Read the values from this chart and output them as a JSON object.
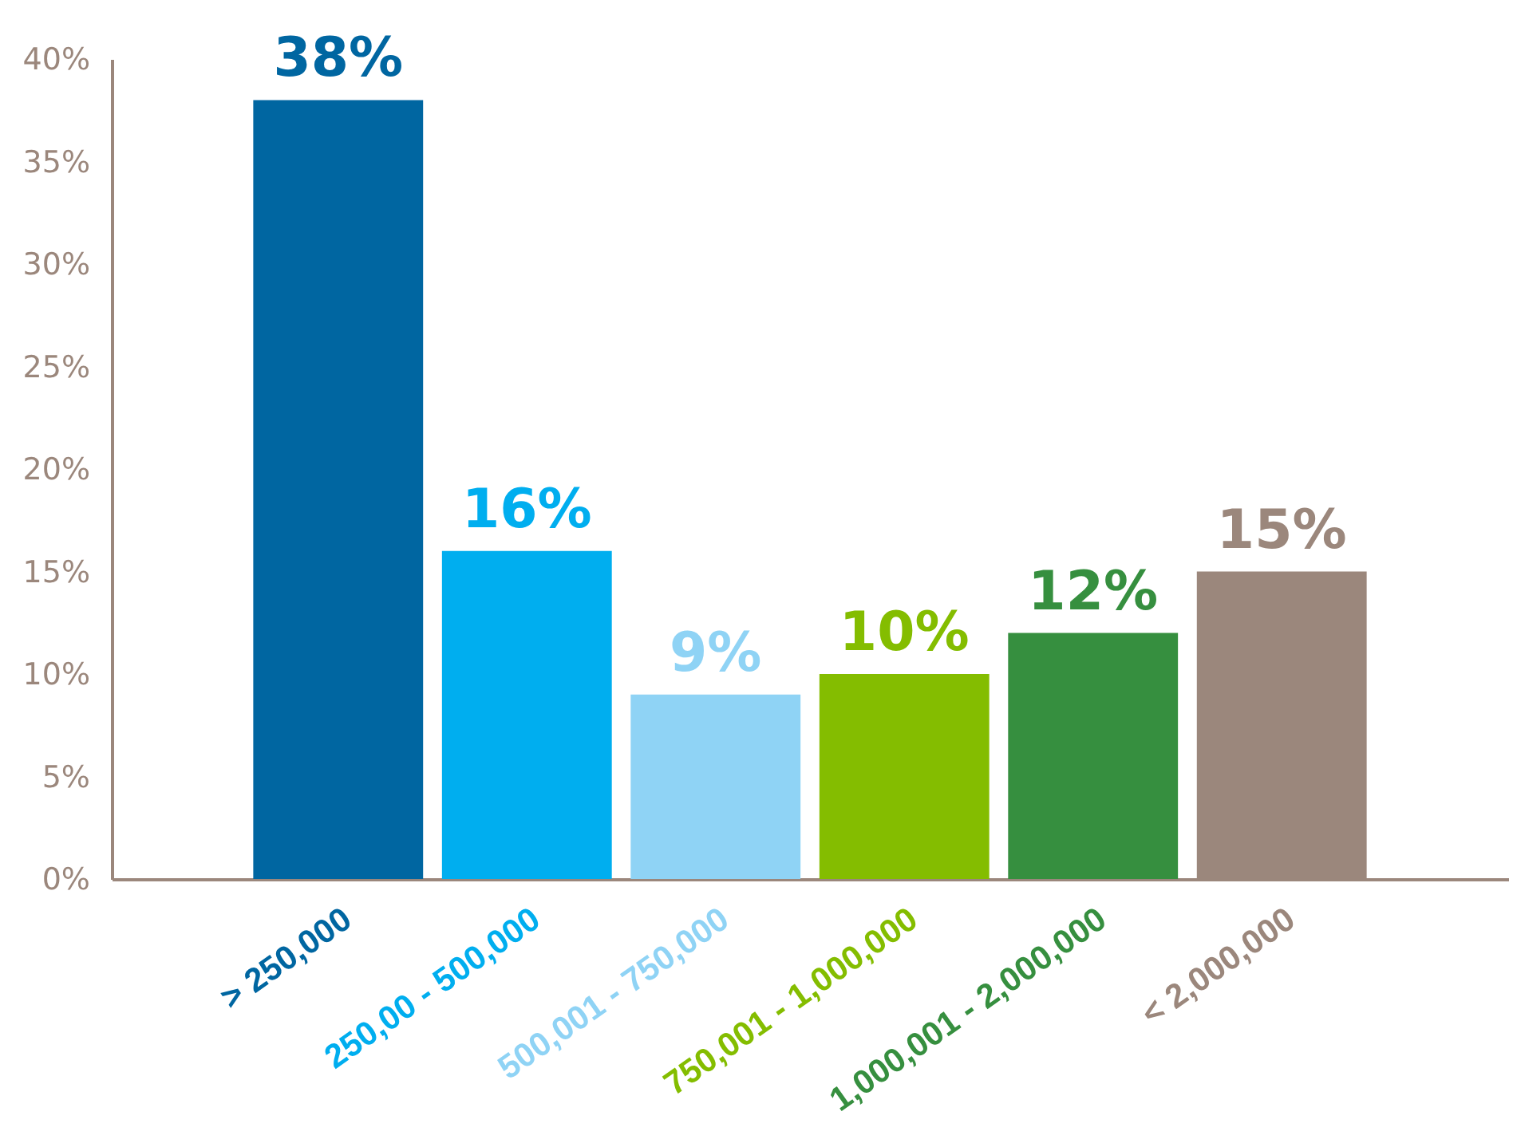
{
  "chart_data": {
    "type": "bar",
    "categories": [
      "> 250,000",
      "250,00 - 500,000",
      "500,001 - 750,000",
      "750,001 - 1,000,000",
      "1,000,001 - 2,000,000",
      "< 2,000,000"
    ],
    "values": [
      38,
      16,
      9,
      10,
      12,
      15
    ],
    "colors": [
      "#0066a1",
      "#00aeef",
      "#8fd3f5",
      "#84bd00",
      "#368f3f",
      "#9b877c"
    ],
    "value_labels": [
      "38%",
      "16%",
      "9%",
      "10%",
      "12%",
      "15%"
    ],
    "ylim": [
      0,
      40
    ],
    "yticks": [
      {
        "value": 0,
        "label": "0%"
      },
      {
        "value": 5,
        "label": "5%"
      },
      {
        "value": 10,
        "label": "10%"
      },
      {
        "value": 15,
        "label": "15%"
      },
      {
        "value": 20,
        "label": "20%"
      },
      {
        "value": 25,
        "label": "25%"
      },
      {
        "value": 30,
        "label": "30%"
      },
      {
        "value": 35,
        "label": "35%"
      },
      {
        "value": 40,
        "label": "40%"
      }
    ],
    "grid": false,
    "legend": false
  }
}
